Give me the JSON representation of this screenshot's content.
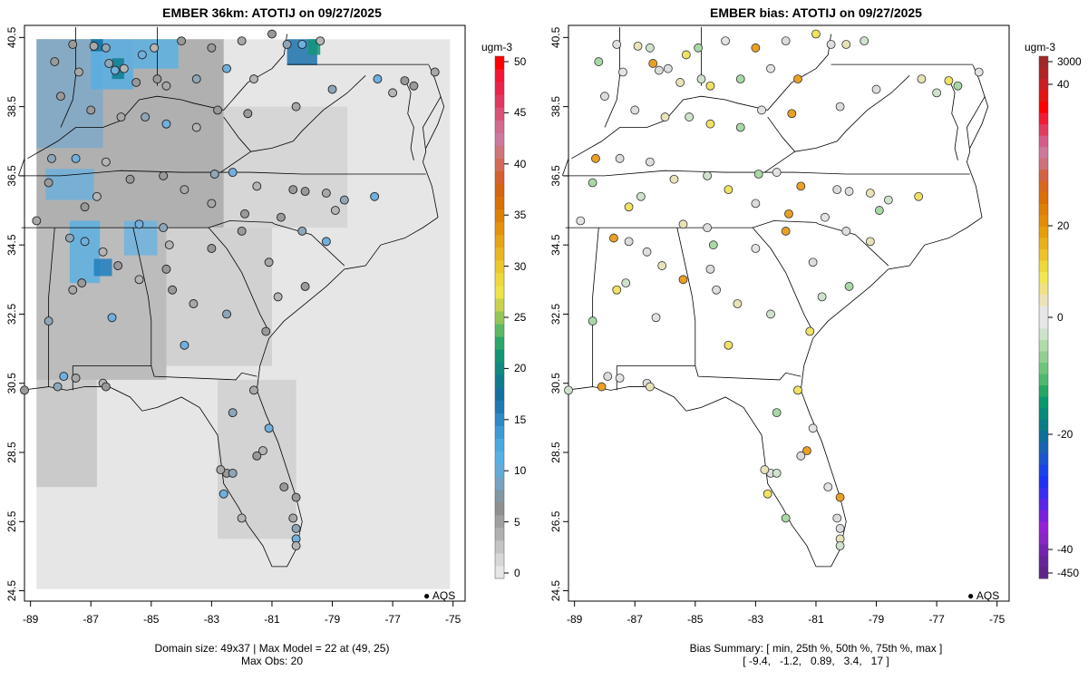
{
  "left_panel": {
    "title": "EMBER 36km: ATOTIJ on 09/27/2025",
    "colorbar": {
      "unit": "ugm-3",
      "ticks": [
        "0",
        "5",
        "10",
        "15",
        "20",
        "25",
        "30",
        "35",
        "40",
        "45",
        "50"
      ],
      "colors": [
        "#e6e6e6",
        "#d7d7d7",
        "#c4c4c4",
        "#b1b1b1",
        "#a0a0a0",
        "#8f8f8f",
        "#8397a3",
        "#74a3c6",
        "#64acd8",
        "#56b0e4",
        "#4aa9e0",
        "#3d9ad6",
        "#2f88c7",
        "#1f78b4",
        "#1470a2",
        "#107b8f",
        "#0e8a7f",
        "#0f9674",
        "#2aa86b",
        "#5bba61",
        "#93c655",
        "#c8d24c",
        "#eee447",
        "#efd83a",
        "#ecc82a",
        "#eab61f",
        "#e8a414",
        "#e4920c",
        "#df8006",
        "#da6f05",
        "#d6640f",
        "#d55f2f",
        "#d46a55",
        "#d0747a",
        "#ce78a0",
        "#d36a90",
        "#dc4f76",
        "#e23860",
        "#eb234a",
        "#f61633",
        "#ff0000"
      ]
    },
    "footer_line1": "Domain size: 49x37 | Max Model = 22 at (49, 25)",
    "footer_line2": "Max Obs: 20",
    "legend_label": "AQS"
  },
  "right_panel": {
    "title": "EMBER bias: ATOTIJ on 09/27/2025",
    "colorbar": {
      "unit": "ugm-3",
      "ticks": [
        "3000",
        "40",
        "20",
        "0",
        "-20",
        "-40",
        "-450"
      ],
      "colors_top": [
        "#a02828",
        "#b22424",
        "#cc1e1e",
        "#e31515",
        "#ff0000",
        "#f41a33",
        "#e33b5d",
        "#d55c8a",
        "#ce789c",
        "#d0707a",
        "#d46242",
        "#d9661b",
        "#dc6f05",
        "#e07e05",
        "#e48c06",
        "#e79e09",
        "#eab01a",
        "#edc328",
        "#efd837",
        "#f2e74f",
        "#f0e282",
        "#ece3b4",
        "#e6e6e6"
      ],
      "colors_bottom": [
        "#e6e6e6",
        "#cde3cc",
        "#aedcaa",
        "#8fd18d",
        "#6ec679",
        "#4db96d",
        "#24a765",
        "#06996d",
        "#058b7a",
        "#067d87",
        "#0c6f98",
        "#1763b4",
        "#1a54d2",
        "#1843ea",
        "#1b33f8",
        "#3a2cf5",
        "#5c23ea",
        "#7b1fdf",
        "#9520d8",
        "#8b24c6",
        "#7623b0",
        "#6a2499",
        "#5e2586"
      ]
    },
    "footer_line1": "Bias Summary: [ min, 25th %, 50th %, 75th %, max ]",
    "footer_line2": "[ -9.4,   -1.2,   0.89,   3.4,   17 ]",
    "legend_label": "AQS"
  },
  "axes": {
    "x_ticks": [
      "-89",
      "-87",
      "-85",
      "-83",
      "-81",
      "-79",
      "-77",
      "-75"
    ],
    "y_ticks": [
      "24.5",
      "26.5",
      "28.5",
      "30.5",
      "32.5",
      "34.5",
      "36.5",
      "38.5",
      "40.5"
    ]
  }
}
